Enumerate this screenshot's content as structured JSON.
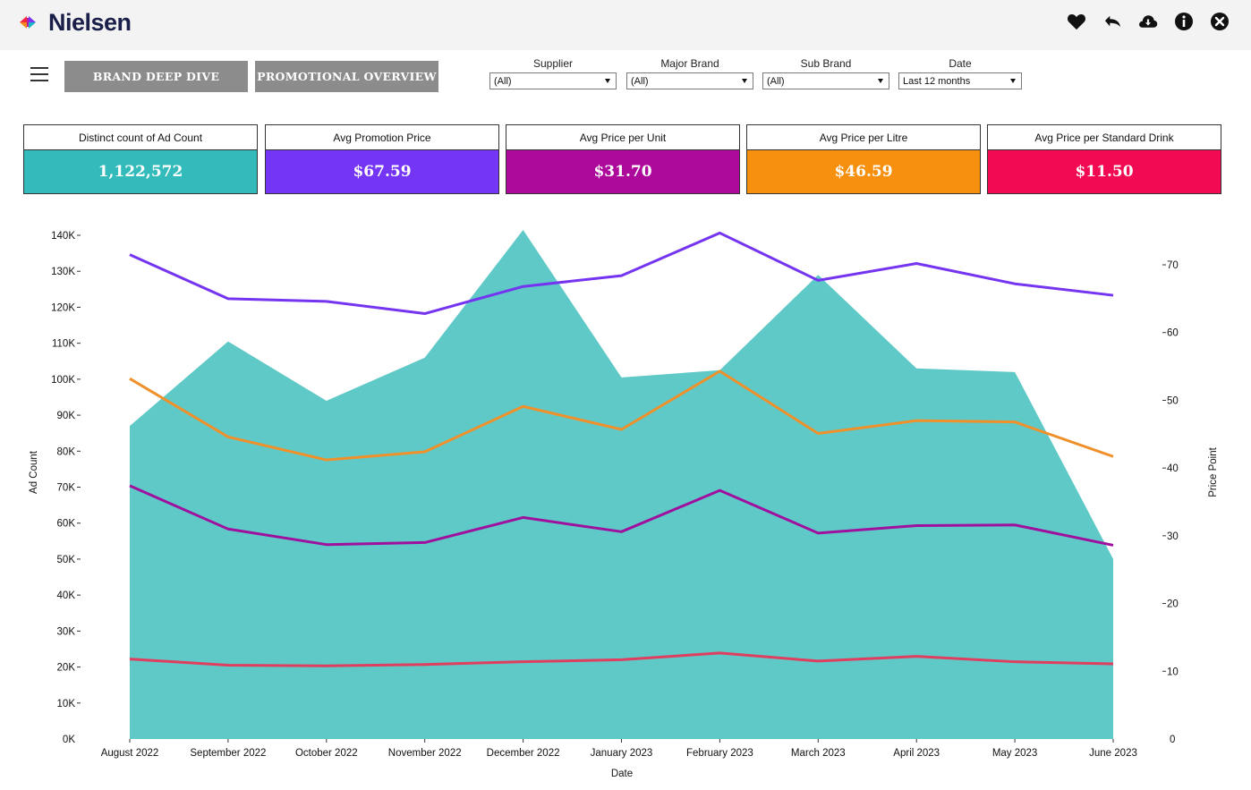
{
  "app": {
    "logo_text": "Nielsen"
  },
  "toolbar": {
    "icons": [
      "heart-icon",
      "undo-icon",
      "cloud-download-icon",
      "info-icon",
      "close-icon"
    ]
  },
  "nav": {
    "brand_deep_dive": "BRAND DEEP DIVE",
    "promotional_overview": "PROMOTIONAL OVERVIEW"
  },
  "filters": {
    "supplier": {
      "label": "Supplier",
      "value": "(All)"
    },
    "major_brand": {
      "label": "Major Brand",
      "value": "(All)"
    },
    "sub_brand": {
      "label": "Sub Brand",
      "value": "(All)"
    },
    "date": {
      "label": "Date",
      "value": "Last 12 months"
    }
  },
  "kpis": [
    {
      "title": "Distinct count of Ad Count",
      "value": "1,122,572",
      "color": "#33bbbb"
    },
    {
      "title": "Avg Promotion Price",
      "value": "$67.59",
      "color": "#7535f5"
    },
    {
      "title": "Avg Price per Unit",
      "value": "$31.70",
      "color": "#ad0a9c"
    },
    {
      "title": "Avg Price per Litre",
      "value": "$46.59",
      "color": "#f7900e"
    },
    {
      "title": "Avg Price per Standard Drink",
      "value": "$11.50",
      "color": "#f20a52"
    }
  ],
  "chart_data": {
    "type": "area+line",
    "xlabel": "Date",
    "ylabel_left": "Ad Count",
    "ylabel_right": "Price Point",
    "categories": [
      "August 2022",
      "September 2022",
      "October 2022",
      "November 2022",
      "December 2022",
      "January 2023",
      "February 2023",
      "March 2023",
      "April 2023",
      "May 2023",
      "June 2023"
    ],
    "left_axis": {
      "min": 0,
      "max": 140000,
      "ticks": [
        0,
        10000,
        20000,
        30000,
        40000,
        50000,
        60000,
        70000,
        80000,
        90000,
        100000,
        110000,
        120000,
        130000,
        140000
      ],
      "tick_labels": [
        "0K",
        "10K",
        "20K",
        "30K",
        "40K",
        "50K",
        "60K",
        "70K",
        "80K",
        "90K",
        "100K",
        "110K",
        "120K",
        "130K",
        "140K"
      ]
    },
    "right_axis": {
      "min": 0,
      "max": 77,
      "ticks": [
        0,
        10,
        20,
        30,
        40,
        50,
        60,
        70
      ],
      "tick_labels": [
        "0",
        "10",
        "20",
        "30",
        "40",
        "50",
        "60",
        "70"
      ]
    },
    "area": {
      "values": [
        87000,
        110500,
        94000,
        106000,
        141500,
        100500,
        102500,
        129000,
        103000,
        102000,
        50000
      ],
      "color": "#5fc9c7"
    },
    "lines": [
      {
        "values": [
          71.5,
          65.0,
          64.6,
          62.8,
          66.8,
          68.4,
          74.7,
          67.7,
          70.2,
          67.2,
          65.5
        ],
        "color": "#7434f0"
      },
      {
        "values": [
          53.2,
          44.6,
          41.2,
          42.4,
          49.1,
          45.7,
          54.3,
          45.1,
          47.0,
          46.8,
          41.7
        ],
        "color": "#f0902a"
      },
      {
        "values": [
          37.4,
          31.0,
          28.7,
          29.0,
          32.7,
          30.6,
          36.7,
          30.4,
          31.5,
          31.6,
          28.6
        ],
        "color": "#a0109e"
      },
      {
        "values": [
          11.8,
          10.9,
          10.8,
          11.0,
          11.4,
          11.7,
          12.7,
          11.5,
          12.2,
          11.4,
          11.1
        ],
        "color": "#e03e5e"
      }
    ]
  }
}
